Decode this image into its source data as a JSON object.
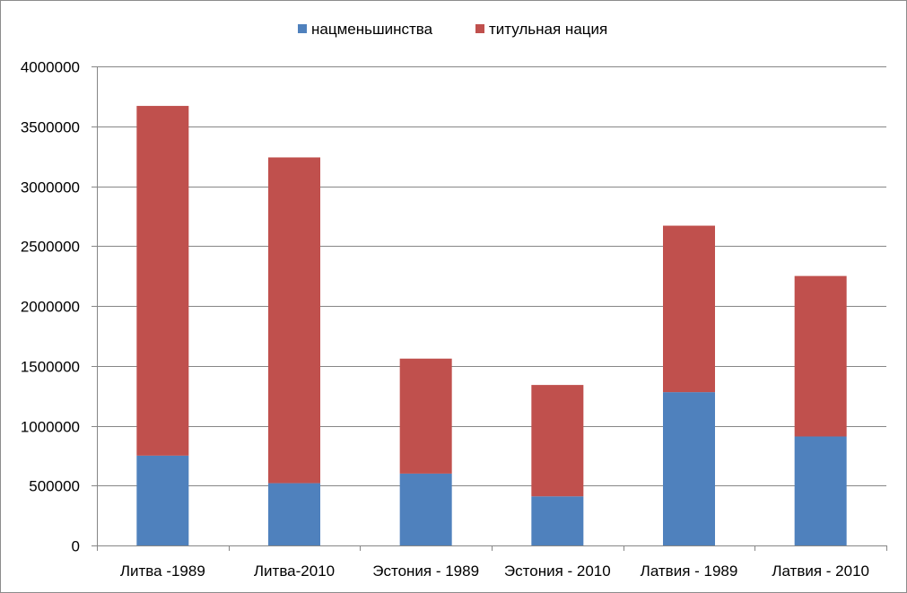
{
  "chart_data": {
    "type": "bar",
    "stacked": true,
    "categories": [
      "Литва -1989",
      "Литва-2010",
      "Эстония - 1989",
      "Эстония - 2010",
      "Латвия - 1989",
      "Латвия - 2010"
    ],
    "series": [
      {
        "name": "нацменьшинства",
        "color": "#4f81bd",
        "values": [
          750000,
          520000,
          600000,
          410000,
          1280000,
          910000
        ]
      },
      {
        "name": "титульная нация",
        "color": "#c0504d",
        "values": [
          2920000,
          2720000,
          960000,
          930000,
          1390000,
          1340000
        ]
      }
    ],
    "ylim": [
      0,
      4000000
    ],
    "yticks": [
      "0",
      "500000",
      "1000000",
      "1500000",
      "2000000",
      "2500000",
      "3000000",
      "3500000",
      "4000000"
    ],
    "ytick_values": [
      0,
      500000,
      1000000,
      1500000,
      2000000,
      2500000,
      3000000,
      3500000,
      4000000
    ],
    "grid": true,
    "legend_position": "top",
    "title": "",
    "xlabel": "",
    "ylabel": ""
  }
}
